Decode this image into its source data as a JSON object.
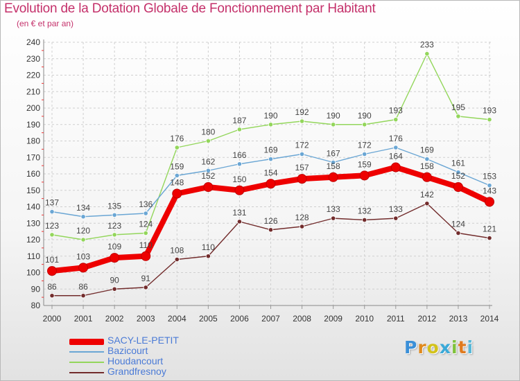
{
  "chart_data": {
    "type": "line",
    "title": "Evolution de la Dotation Globale de Fonctionnement par Habitant",
    "subtitle": "(en € et par an)",
    "x": [
      2000,
      2001,
      2002,
      2003,
      2004,
      2005,
      2006,
      2007,
      2008,
      2009,
      2010,
      2011,
      2012,
      2013,
      2014
    ],
    "ylim": [
      80,
      240
    ],
    "yticks": [
      80,
      90,
      100,
      110,
      120,
      130,
      140,
      150,
      160,
      170,
      180,
      190,
      200,
      210,
      220,
      230,
      240
    ],
    "grid": true,
    "series": [
      {
        "name": "Grandfresnoy",
        "color": "#722c2c",
        "values": [
          86,
          86,
          90,
          91,
          108,
          110,
          131,
          126,
          128,
          133,
          132,
          133,
          142,
          124,
          121
        ]
      },
      {
        "name": "Houdancourt",
        "color": "#93d65b",
        "values": [
          123,
          120,
          123,
          124,
          176,
          180,
          187,
          190,
          192,
          190,
          190,
          193,
          233,
          195,
          193
        ]
      },
      {
        "name": "Bazicourt",
        "color": "#6aa6d4",
        "values": [
          137,
          134,
          135,
          136,
          159,
          162,
          166,
          169,
          172,
          167,
          172,
          176,
          169,
          161,
          153
        ]
      },
      {
        "name": "SACY-LE-PETIT",
        "color": "#ee0000",
        "values": [
          101,
          103,
          109,
          110,
          148,
          152,
          150,
          154,
          157,
          158,
          159,
          164,
          158,
          152,
          143
        ]
      }
    ]
  },
  "legend": {
    "items": [
      {
        "label": "SACY-LE-PETIT",
        "color": "#ee0000"
      },
      {
        "label": "Bazicourt",
        "color": "#6aa6d4"
      },
      {
        "label": "Houdancourt",
        "color": "#93d65b"
      },
      {
        "label": "Grandfresnoy",
        "color": "#722c2c"
      }
    ]
  },
  "logo": {
    "letters": [
      "P",
      "r",
      "o",
      "x",
      "i",
      "t",
      "i"
    ],
    "colors": [
      "#3a8fd8",
      "#e08a1e",
      "#d3c21a",
      "#3aa9d8",
      "#7fc23a",
      "#e07a1e",
      "#58b8d8"
    ]
  }
}
